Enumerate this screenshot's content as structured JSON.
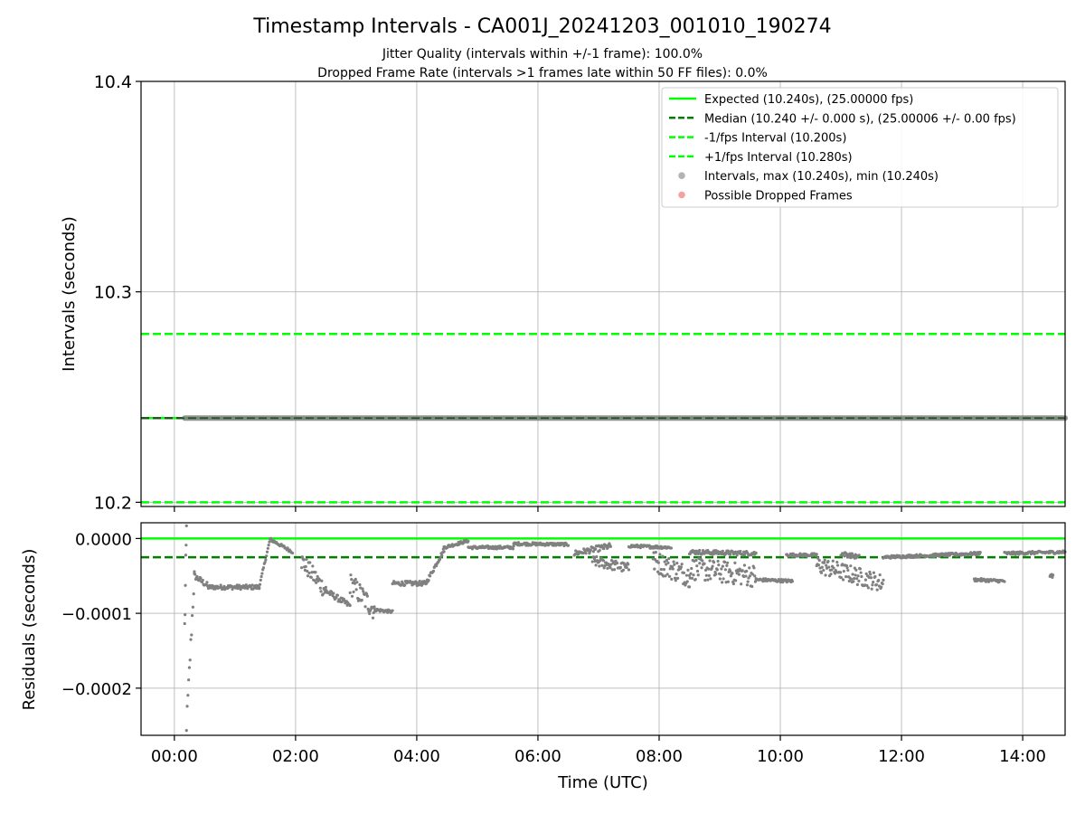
{
  "chart_data": [
    {
      "type": "line",
      "title": "Timestamp Intervals - CA001J_20241203_001010_190274",
      "subtitle_lines": [
        "Jitter Quality (intervals within +/-1 frame): 100.0%",
        "Dropped Frame Rate (intervals >1 frames late within 50 FF files): 0.0%"
      ],
      "xlabel": "",
      "ylabel": "Intervals (seconds)",
      "xlim_hours": [
        -0.55,
        14.7
      ],
      "ylim": [
        10.198,
        10.4
      ],
      "y_ticks": [
        10.2,
        10.3,
        10.4
      ],
      "y_tick_labels": [
        "10.2",
        "10.3",
        "10.4"
      ],
      "grid": true,
      "legend_position": "top-right",
      "series": [
        {
          "name": "Expected (10.240s), (25.00000 fps)",
          "kind": "hline",
          "y": 10.24,
          "style": "solid",
          "color": "#00ff00"
        },
        {
          "name": "Median (10.240 +/- 0.000 s), (25.00006 +/- 0.00 fps)",
          "kind": "hline",
          "y": 10.24,
          "style": "dashed",
          "color": "#008000"
        },
        {
          "name": "-1/fps Interval (10.200s)",
          "kind": "hline",
          "y": 10.2,
          "style": "dashed",
          "color": "#00ff00"
        },
        {
          "name": "+1/fps Interval (10.280s)",
          "kind": "hline",
          "y": 10.28,
          "style": "dashed",
          "color": "#00ff00"
        },
        {
          "name": "Intervals, max (10.240s), min (10.240s)",
          "kind": "scatter",
          "color": "#808080",
          "x_start_hours": 0.17,
          "x_end_hours": 14.7,
          "y": 10.24
        },
        {
          "name": "Possible Dropped Frames",
          "kind": "scatter",
          "color": "#f06060",
          "points": []
        }
      ]
    },
    {
      "type": "scatter",
      "xlabel": "Time (UTC)",
      "ylabel": "Residuals (seconds)",
      "xlim_hours": [
        -0.55,
        14.7
      ],
      "ylim": [
        -0.000263,
        2.1e-05
      ],
      "y_ticks": [
        0.0,
        -0.0001,
        -0.0002
      ],
      "y_tick_labels": [
        "0.0000",
        "−0.0001",
        "−0.0002"
      ],
      "x_ticks_hours": [
        0,
        2,
        4,
        6,
        8,
        10,
        12,
        14
      ],
      "x_tick_labels": [
        "00:00",
        "02:00",
        "04:00",
        "06:00",
        "08:00",
        "10:00",
        "12:00",
        "14:00"
      ],
      "grid": true,
      "reference_lines": [
        {
          "y": 0.0,
          "style": "solid",
          "color": "#00ff00"
        },
        {
          "y": -2.5e-05,
          "style": "dashed",
          "color": "#008000"
        }
      ],
      "residual_profile": [
        {
          "start_h": 0.17,
          "end_h": 0.2,
          "v0": -0.00012,
          "v1": 1e-05,
          "spread": 2e-05
        },
        {
          "start_h": 0.2,
          "end_h": 0.33,
          "v0": -0.00025,
          "v1": -5e-05,
          "spread": 1e-05
        },
        {
          "start_h": 0.33,
          "end_h": 0.55,
          "v0": -5e-05,
          "v1": -6.3e-05,
          "spread": 4e-06
        },
        {
          "start_h": 0.55,
          "end_h": 1.4,
          "v0": -6.5e-05,
          "v1": -6.5e-05,
          "spread": 3e-06
        },
        {
          "start_h": 1.4,
          "end_h": 1.58,
          "v0": -6.5e-05,
          "v1": -1e-06,
          "spread": 2e-06
        },
        {
          "start_h": 1.58,
          "end_h": 1.95,
          "v0": -1e-06,
          "v1": -1.8e-05,
          "spread": 2e-06
        },
        {
          "start_h": 2.1,
          "end_h": 2.5,
          "v0": -3e-05,
          "v1": -7e-05,
          "spread": 1.2e-05
        },
        {
          "start_h": 2.5,
          "end_h": 2.9,
          "v0": -7e-05,
          "v1": -9e-05,
          "spread": 4e-06
        },
        {
          "start_h": 2.9,
          "end_h": 3.3,
          "v0": -6e-05,
          "v1": -9.5e-05,
          "spread": 1.5e-05
        },
        {
          "start_h": 3.3,
          "end_h": 3.6,
          "v0": -9.5e-05,
          "v1": -9.8e-05,
          "spread": 2e-06
        },
        {
          "start_h": 3.6,
          "end_h": 4.15,
          "v0": -6e-05,
          "v1": -6e-05,
          "spread": 3e-06
        },
        {
          "start_h": 4.15,
          "end_h": 4.45,
          "v0": -6e-05,
          "v1": -1.5e-05,
          "spread": 3e-06
        },
        {
          "start_h": 4.45,
          "end_h": 4.85,
          "v0": -1.2e-05,
          "v1": -3e-06,
          "spread": 2e-06
        },
        {
          "start_h": 4.85,
          "end_h": 5.6,
          "v0": -1.2e-05,
          "v1": -1.2e-05,
          "spread": 2e-06
        },
        {
          "start_h": 5.6,
          "end_h": 6.5,
          "v0": -7e-06,
          "v1": -8e-06,
          "spread": 2e-06
        },
        {
          "start_h": 6.6,
          "end_h": 7.2,
          "v0": -2e-05,
          "v1": -1e-05,
          "spread": 4e-06
        },
        {
          "start_h": 6.9,
          "end_h": 7.5,
          "v0": -3e-05,
          "v1": -4e-05,
          "spread": 7e-06
        },
        {
          "start_h": 7.5,
          "end_h": 8.2,
          "v0": -1e-05,
          "v1": -1.2e-05,
          "spread": 2e-06
        },
        {
          "start_h": 7.9,
          "end_h": 8.5,
          "v0": -3e-05,
          "v1": -5e-05,
          "spread": 1.5e-05
        },
        {
          "start_h": 8.5,
          "end_h": 9.6,
          "v0": -1.8e-05,
          "v1": -2e-05,
          "spread": 3e-06
        },
        {
          "start_h": 8.5,
          "end_h": 9.6,
          "v0": -4e-05,
          "v1": -5e-05,
          "spread": 1.5e-05
        },
        {
          "start_h": 9.6,
          "end_h": 10.2,
          "v0": -5.5e-05,
          "v1": -5.7e-05,
          "spread": 2e-06
        },
        {
          "start_h": 10.1,
          "end_h": 10.6,
          "v0": -2.2e-05,
          "v1": -2.2e-05,
          "spread": 2e-06
        },
        {
          "start_h": 10.6,
          "end_h": 11.7,
          "v0": -3.5e-05,
          "v1": -6e-05,
          "spread": 1.2e-05
        },
        {
          "start_h": 11.0,
          "end_h": 11.3,
          "v0": -2e-05,
          "v1": -2.5e-05,
          "spread": 3e-06
        },
        {
          "start_h": 11.7,
          "end_h": 13.3,
          "v0": -2.5e-05,
          "v1": -2e-05,
          "spread": 2e-06
        },
        {
          "start_h": 13.2,
          "end_h": 13.7,
          "v0": -5.5e-05,
          "v1": -5.7e-05,
          "spread": 2e-06
        },
        {
          "start_h": 13.7,
          "end_h": 14.7,
          "v0": -2e-05,
          "v1": -1.8e-05,
          "spread": 2e-06
        },
        {
          "start_h": 14.45,
          "end_h": 14.5,
          "v0": -5e-05,
          "v1": -5e-05,
          "spread": 2e-06
        }
      ],
      "point_color": "#808080"
    }
  ]
}
